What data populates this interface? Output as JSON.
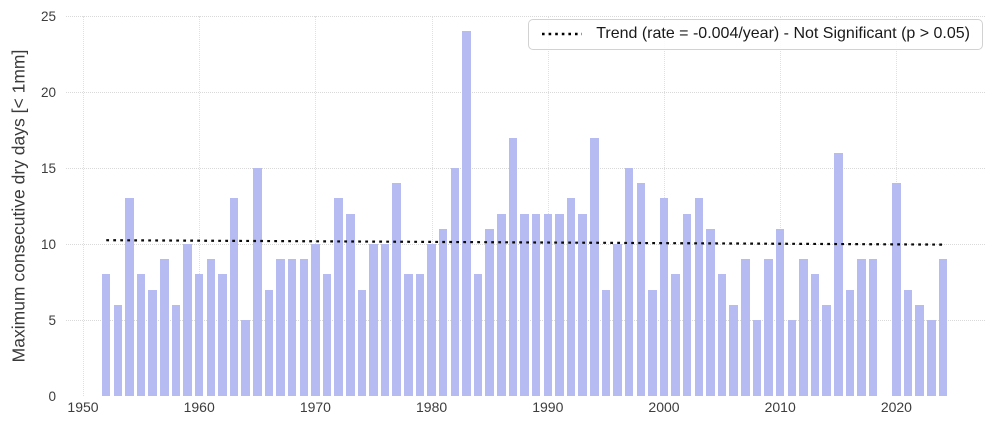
{
  "legend": {
    "trend_label": "Trend (rate = -0.004/year) - Not Significant (p > 0.05)"
  },
  "axes": {
    "y_label": "Maximum consecutive dry days [< 1mm]",
    "y_ticks": [
      0,
      5,
      10,
      15,
      20,
      25
    ],
    "x_ticks": [
      1950,
      1960,
      1970,
      1980,
      1990,
      2000,
      2010,
      2020
    ]
  },
  "colors": {
    "bar": "#b6bcf2",
    "trend": "#0a0a0a",
    "grid": "#d9d9d9",
    "tick_text": "#3d3d3d",
    "background": "#ffffff"
  },
  "chart_data": {
    "type": "bar",
    "title": "",
    "xlabel": "",
    "ylabel": "Maximum consecutive dry days [< 1mm]",
    "ylim": [
      0,
      25
    ],
    "xlim": [
      1948.5,
      2027.5
    ],
    "grid": true,
    "legend_position": "upper right",
    "x": [
      1952,
      1953,
      1954,
      1955,
      1956,
      1957,
      1958,
      1959,
      1960,
      1961,
      1962,
      1963,
      1964,
      1965,
      1966,
      1967,
      1968,
      1969,
      1970,
      1971,
      1972,
      1973,
      1974,
      1975,
      1976,
      1977,
      1978,
      1979,
      1980,
      1981,
      1982,
      1983,
      1984,
      1985,
      1986,
      1987,
      1988,
      1989,
      1990,
      1991,
      1992,
      1993,
      1994,
      1995,
      1996,
      1997,
      1998,
      1999,
      2000,
      2001,
      2002,
      2003,
      2004,
      2005,
      2006,
      2007,
      2008,
      2009,
      2010,
      2011,
      2012,
      2013,
      2014,
      2015,
      2016,
      2017,
      2018,
      2019,
      2020,
      2021,
      2022,
      2023,
      2024
    ],
    "values": [
      8,
      6,
      13,
      8,
      7,
      9,
      6,
      10,
      8,
      9,
      8,
      13,
      5,
      15,
      7,
      9,
      9,
      9,
      10,
      8,
      13,
      12,
      7,
      10,
      10,
      14,
      8,
      8,
      10,
      11,
      15,
      24,
      8,
      11,
      12,
      17,
      12,
      12,
      12,
      12,
      13,
      12,
      17,
      7,
      10,
      15,
      14,
      7,
      13,
      8,
      12,
      13,
      11,
      8,
      6,
      9,
      5,
      9,
      11,
      5,
      9,
      8,
      6,
      16,
      7,
      9,
      9,
      null,
      14,
      7,
      6,
      5,
      9
    ],
    "trend": {
      "label": "Trend (rate = -0.004/year) - Not Significant (p > 0.05)",
      "rate_per_year": -0.004,
      "p_value": "> 0.05",
      "significant": false,
      "line_style": "dotted",
      "start": {
        "x": 1952,
        "y": 10.25
      },
      "end": {
        "x": 2024,
        "y": 9.96
      }
    }
  }
}
